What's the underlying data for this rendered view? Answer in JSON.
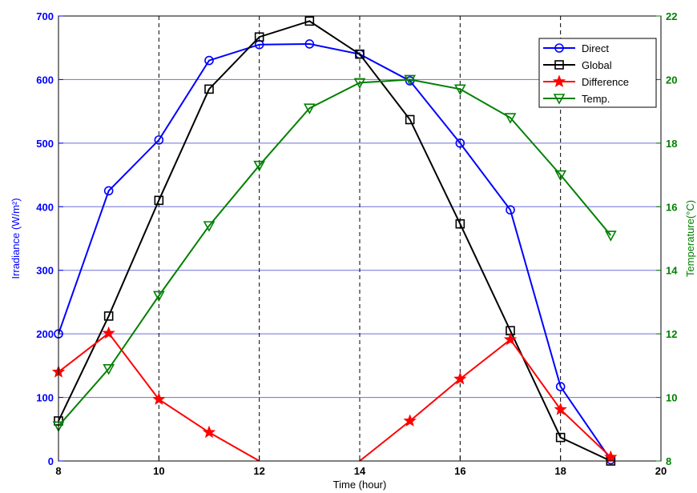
{
  "chart_data": {
    "type": "line",
    "title": "",
    "x": [
      8,
      9,
      10,
      11,
      12,
      13,
      14,
      15,
      16,
      17,
      18,
      19
    ],
    "xlabel": "Time (hour)",
    "xlim": [
      8,
      20
    ],
    "xticks": [
      "8",
      "10",
      "12",
      "14",
      "16",
      "18",
      "20"
    ],
    "ylabel_left": "Irradiance (W/m²)",
    "ylim_left": [
      0,
      700
    ],
    "yticks_left": [
      "0",
      "100",
      "200",
      "300",
      "400",
      "500",
      "600",
      "700"
    ],
    "ylabel_right": "Temperature(°C)",
    "ylim_right": [
      8,
      22
    ],
    "yticks_right": [
      "8",
      "10",
      "12",
      "14",
      "16",
      "18",
      "20",
      "22"
    ],
    "grid": "horizontal solid lines, dashed vertical lines at even hours",
    "legend_position": "top-right",
    "series": [
      {
        "name": "Direct",
        "axis": "left",
        "color": "#0000ff",
        "marker": "circle",
        "values": [
          200,
          425,
          505,
          630,
          655,
          656,
          640,
          598,
          500,
          395,
          117,
          2
        ]
      },
      {
        "name": "Global",
        "axis": "left",
        "color": "#000000",
        "marker": "square",
        "values": [
          63,
          228,
          410,
          585,
          667,
          692,
          640,
          537,
          373,
          205,
          37,
          0
        ]
      },
      {
        "name": "Difference",
        "axis": "left",
        "color": "#ff0000",
        "marker": "star",
        "values": [
          140,
          201,
          97,
          45,
          -2,
          null,
          -2,
          63,
          129,
          191,
          81,
          6
        ]
      },
      {
        "name": "Temp.",
        "axis": "right",
        "color": "#008000",
        "marker": "triangle-down",
        "values": [
          9.1,
          10.9,
          13.2,
          15.4,
          17.3,
          19.1,
          19.9,
          20.0,
          19.7,
          18.8,
          17.0,
          15.1
        ]
      }
    ]
  }
}
